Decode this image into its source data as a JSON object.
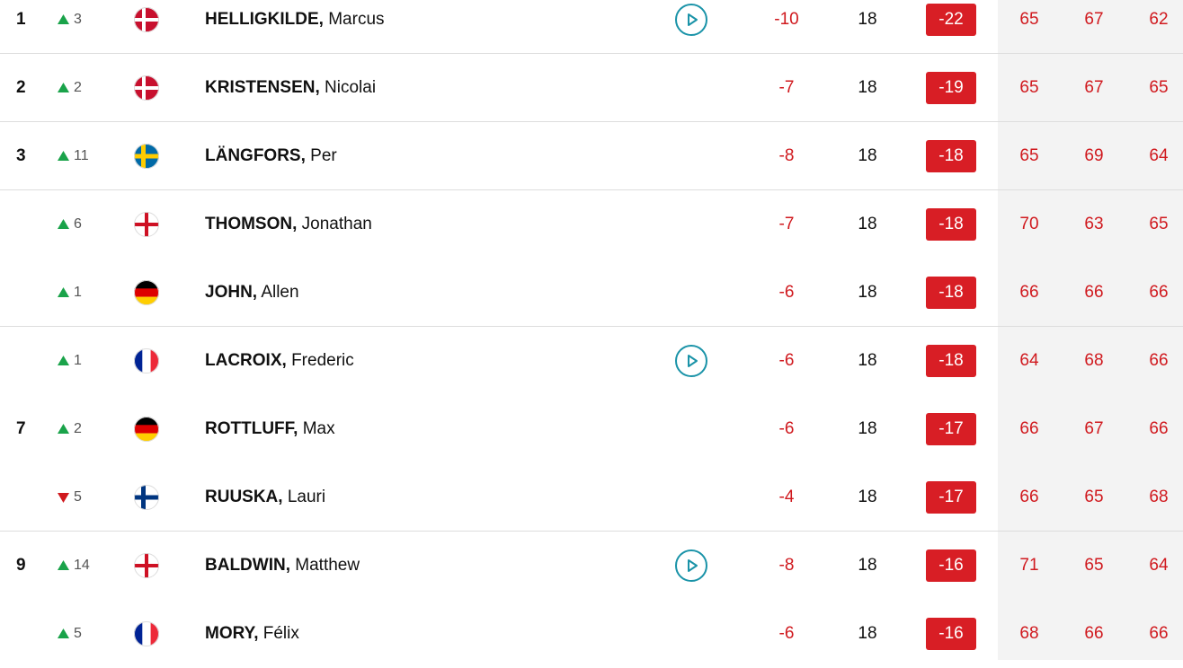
{
  "leaderboard": {
    "rows": [
      {
        "pos": "1",
        "move": 3,
        "last": "HELLIGKILDE,",
        "first": "Marcus",
        "today": -10,
        "thru": 18,
        "total": -22,
        "rounds": [
          65,
          67,
          62
        ]
      },
      {
        "pos": "2",
        "move": 2,
        "last": "KRISTENSEN,",
        "first": "Nicolai",
        "today": -7,
        "thru": 18,
        "total": -19,
        "rounds": [
          65,
          67,
          65
        ]
      },
      {
        "pos": "3",
        "move": 11,
        "last": "LÄNGFORS,",
        "first": "Per",
        "today": -8,
        "thru": 18,
        "total": -18,
        "rounds": [
          65,
          69,
          64
        ]
      },
      {
        "move": 6,
        "last": "THOMSON,",
        "first": "Jonathan",
        "today": -7,
        "thru": 18,
        "total": -18,
        "rounds": [
          70,
          63,
          65
        ]
      },
      {
        "move": 1,
        "last": "JOHN,",
        "first": "Allen",
        "today": -6,
        "thru": 18,
        "total": -18,
        "rounds": [
          66,
          66,
          66
        ]
      },
      {
        "move": 1,
        "last": "LACROIX,",
        "first": "Frederic",
        "today": -6,
        "thru": 18,
        "total": -18,
        "rounds": [
          64,
          68,
          66
        ]
      },
      {
        "pos": "7",
        "move": 2,
        "last": "ROTTLUFF,",
        "first": "Max",
        "today": -6,
        "thru": 18,
        "total": -17,
        "rounds": [
          66,
          67,
          66
        ]
      },
      {
        "move": 5,
        "last": "RUUSKA,",
        "first": "Lauri",
        "today": -4,
        "thru": 18,
        "total": -17,
        "rounds": [
          66,
          65,
          68
        ]
      },
      {
        "pos": "9",
        "move": 14,
        "last": "BALDWIN,",
        "first": "Matthew",
        "today": -8,
        "thru": 18,
        "total": -16,
        "rounds": [
          71,
          65,
          64
        ]
      },
      {
        "move": 5,
        "last": "MORY,",
        "first": "Félix",
        "today": -6,
        "thru": 18,
        "total": -16,
        "rounds": [
          68,
          66,
          66
        ]
      }
    ]
  }
}
